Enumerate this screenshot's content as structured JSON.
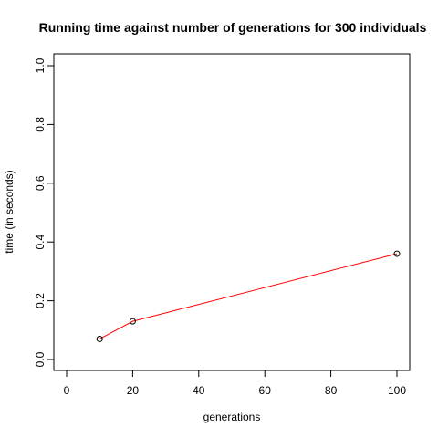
{
  "chart_data": {
    "type": "line",
    "title": "Running time against number of generations for 300 individuals",
    "xlabel": "generations",
    "ylabel": "time (in seconds)",
    "xlim": [
      0,
      100
    ],
    "ylim": [
      0,
      1.0
    ],
    "xticks": [
      "0",
      "20",
      "40",
      "60",
      "80",
      "100"
    ],
    "yticks": [
      "0.0",
      "0.2",
      "0.4",
      "0.6",
      "0.8",
      "1.0"
    ],
    "grid": false,
    "legend": "none",
    "series": [
      {
        "x": [
          10,
          20,
          100
        ],
        "y": [
          0.07,
          0.13,
          0.36
        ],
        "line_color": "#ff0000",
        "marker_color": "#000000",
        "marker": "open-circle"
      }
    ]
  }
}
